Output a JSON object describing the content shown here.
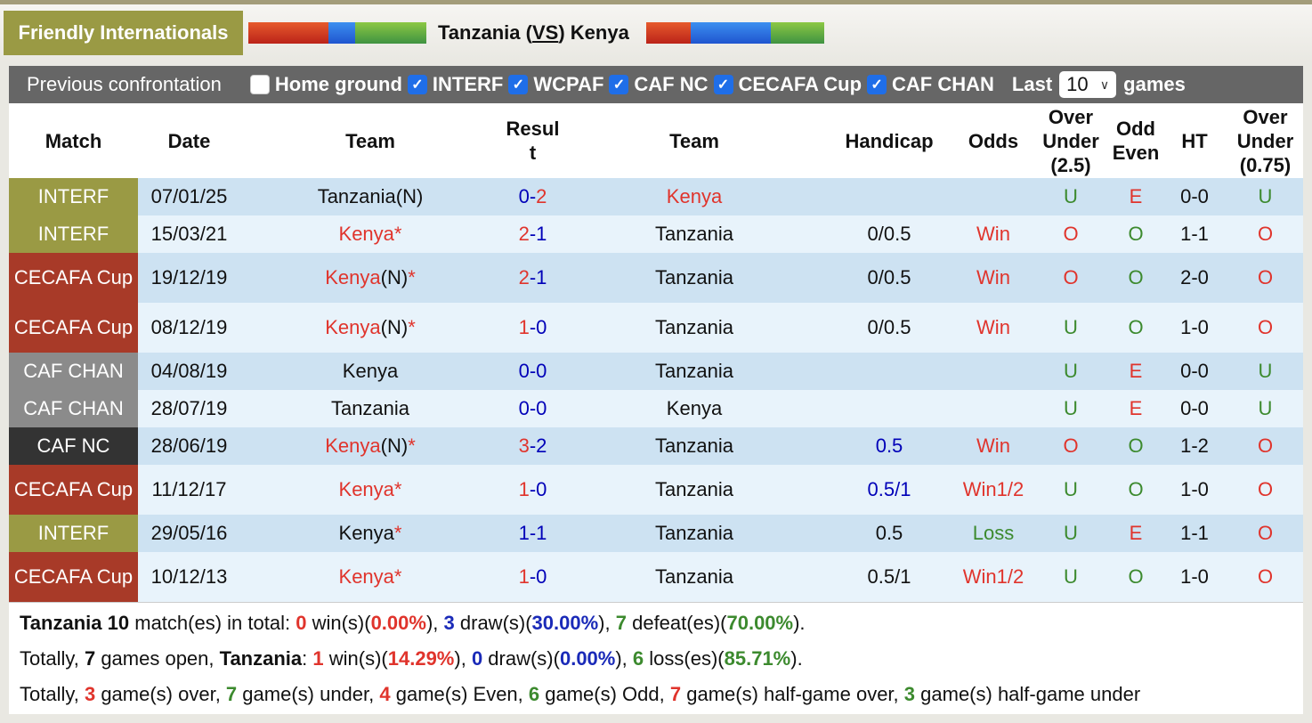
{
  "header": {
    "league": "Friendly Internationals",
    "home_team": "Tanzania",
    "vs_open": "(",
    "vs_label": "VS",
    "vs_close": ")",
    "away_team": "Kenya",
    "home_form_bar": [
      {
        "color": "red",
        "width": 90
      },
      {
        "color": "blue",
        "width": 30
      },
      {
        "color": "green",
        "width": 80
      }
    ],
    "away_form_bar": [
      {
        "color": "red",
        "width": 50
      },
      {
        "color": "blue",
        "width": 90
      },
      {
        "color": "green",
        "width": 60
      }
    ]
  },
  "filters": {
    "title": "Previous confrontation",
    "checkboxes": [
      {
        "label": "Home ground",
        "checked": false
      },
      {
        "label": "INTERF",
        "checked": true
      },
      {
        "label": "WCPAF",
        "checked": true
      },
      {
        "label": "CAF NC",
        "checked": true
      },
      {
        "label": "CECAFA Cup",
        "checked": true
      },
      {
        "label": "CAF CHAN",
        "checked": true
      }
    ],
    "check_glyph": "✓",
    "last_label": "Last",
    "last_value": "10",
    "games_label": "games"
  },
  "table": {
    "columns": [
      "Match",
      "Date",
      "Team",
      "Resul t",
      "Team",
      "Handicap",
      "Odds",
      "Over Under (2.5)",
      "Odd Even",
      "HT",
      "Over Under (0.75)"
    ],
    "rows": [
      {
        "match": "INTERF",
        "match_type": "interf",
        "date": "07/01/25",
        "home": "Tanzania",
        "home_suffix": "(N)",
        "home_star": "",
        "home_color": "black",
        "score_home": "0",
        "score_away": "2",
        "score_home_color": "blue",
        "score_away_color": "red",
        "away": "Kenya",
        "away_color": "red",
        "handicap": "",
        "handicap_color": "black",
        "odds": "",
        "odds_color": "red",
        "ou25": "U",
        "oe": "E",
        "ht": "0-0",
        "ou075": "U"
      },
      {
        "match": "INTERF",
        "match_type": "interf",
        "date": "15/03/21",
        "home": "Kenya",
        "home_suffix": "",
        "home_star": "*",
        "home_color": "red",
        "score_home": "2",
        "score_away": "1",
        "score_home_color": "red",
        "score_away_color": "blue",
        "away": "Tanzania",
        "away_color": "black",
        "handicap": "0/0.5",
        "handicap_color": "black",
        "odds": "Win",
        "odds_color": "red",
        "ou25": "O",
        "oe": "O",
        "ht": "1-1",
        "ou075": "O"
      },
      {
        "match": "CECAFA Cup",
        "match_type": "cecafa",
        "date": "19/12/19",
        "home": "Kenya",
        "home_suffix": "(N)",
        "home_star": "*",
        "home_color": "red",
        "score_home": "2",
        "score_away": "1",
        "score_home_color": "red",
        "score_away_color": "blue",
        "away": "Tanzania",
        "away_color": "black",
        "handicap": "0/0.5",
        "handicap_color": "black",
        "odds": "Win",
        "odds_color": "red",
        "ou25": "O",
        "oe": "O",
        "ht": "2-0",
        "ou075": "O"
      },
      {
        "match": "CECAFA Cup",
        "match_type": "cecafa",
        "date": "08/12/19",
        "home": "Kenya",
        "home_suffix": "(N)",
        "home_star": "*",
        "home_color": "red",
        "score_home": "1",
        "score_away": "0",
        "score_home_color": "red",
        "score_away_color": "blue",
        "away": "Tanzania",
        "away_color": "black",
        "handicap": "0/0.5",
        "handicap_color": "black",
        "odds": "Win",
        "odds_color": "red",
        "ou25": "U",
        "oe": "O",
        "ht": "1-0",
        "ou075": "O"
      },
      {
        "match": "CAF CHAN",
        "match_type": "chan",
        "date": "04/08/19",
        "home": "Kenya",
        "home_suffix": "",
        "home_star": "",
        "home_color": "black",
        "score_home": "0",
        "score_away": "0",
        "score_home_color": "blue",
        "score_away_color": "blue",
        "away": "Tanzania",
        "away_color": "black",
        "handicap": "",
        "handicap_color": "black",
        "odds": "",
        "odds_color": "red",
        "ou25": "U",
        "oe": "E",
        "ht": "0-0",
        "ou075": "U"
      },
      {
        "match": "CAF CHAN",
        "match_type": "chan",
        "date": "28/07/19",
        "home": "Tanzania",
        "home_suffix": "",
        "home_star": "",
        "home_color": "black",
        "score_home": "0",
        "score_away": "0",
        "score_home_color": "blue",
        "score_away_color": "blue",
        "away": "Kenya",
        "away_color": "black",
        "handicap": "",
        "handicap_color": "black",
        "odds": "",
        "odds_color": "red",
        "ou25": "U",
        "oe": "E",
        "ht": "0-0",
        "ou075": "U"
      },
      {
        "match": "CAF NC",
        "match_type": "cafnc",
        "date": "28/06/19",
        "home": "Kenya",
        "home_suffix": "(N)",
        "home_star": "*",
        "home_color": "red",
        "score_home": "3",
        "score_away": "2",
        "score_home_color": "red",
        "score_away_color": "blue",
        "away": "Tanzania",
        "away_color": "black",
        "handicap": "0.5",
        "handicap_color": "dblue",
        "odds": "Win",
        "odds_color": "red",
        "ou25": "O",
        "oe": "O",
        "ht": "1-2",
        "ou075": "O"
      },
      {
        "match": "CECAFA Cup",
        "match_type": "cecafa",
        "date": "11/12/17",
        "home": "Kenya",
        "home_suffix": "",
        "home_star": "*",
        "home_color": "red",
        "score_home": "1",
        "score_away": "0",
        "score_home_color": "red",
        "score_away_color": "blue",
        "away": "Tanzania",
        "away_color": "black",
        "handicap": "0.5/1",
        "handicap_color": "dblue",
        "odds": "Win1/2",
        "odds_color": "red",
        "ou25": "U",
        "oe": "O",
        "ht": "1-0",
        "ou075": "O"
      },
      {
        "match": "INTERF",
        "match_type": "interf",
        "date": "29/05/16",
        "home": "Kenya",
        "home_suffix": "",
        "home_star": "*",
        "home_color": "black",
        "score_home": "1",
        "score_away": "1",
        "score_home_color": "blue",
        "score_away_color": "blue",
        "away": "Tanzania",
        "away_color": "black",
        "handicap": "0.5",
        "handicap_color": "black",
        "odds": "Loss",
        "odds_color": "green",
        "ou25": "U",
        "oe": "E",
        "ht": "1-1",
        "ou075": "O"
      },
      {
        "match": "CECAFA Cup",
        "match_type": "cecafa",
        "date": "10/12/13",
        "home": "Kenya",
        "home_suffix": "",
        "home_star": "*",
        "home_color": "red",
        "score_home": "1",
        "score_away": "0",
        "score_home_color": "red",
        "score_away_color": "blue",
        "away": "Tanzania",
        "away_color": "black",
        "handicap": "0.5/1",
        "handicap_color": "black",
        "odds": "Win1/2",
        "odds_color": "red",
        "ou25": "U",
        "oe": "O",
        "ht": "1-0",
        "ou075": "O"
      }
    ]
  },
  "summary": {
    "line1": {
      "team": "Tanzania",
      "total": "10",
      "t1": " match(es) in total: ",
      "wins": "0",
      "t2": " win(s)(",
      "win_pct": "0.00%",
      "t3": "), ",
      "draws": "3",
      "t4": " draw(s)(",
      "draw_pct": "30.00%",
      "t5": "), ",
      "defeats": "7",
      "t6": " defeat(es)(",
      "defeat_pct": "70.00%",
      "t7": ")."
    },
    "line2": {
      "t0": "Totally, ",
      "open": "7",
      "t1": " games open, ",
      "team": "Tanzania",
      "t2": ": ",
      "wins": "1",
      "t3": " win(s)(",
      "win_pct": "14.29%",
      "t4": "), ",
      "draws": "0",
      "t5": " draw(s)(",
      "draw_pct": "0.00%",
      "t6": "), ",
      "losses": "6",
      "t7": " loss(es)(",
      "loss_pct": "85.71%",
      "t8": ")."
    },
    "line3": {
      "t0": "Totally, ",
      "over": "3",
      "t1": " game(s) over, ",
      "under": "7",
      "t2": " game(s) under, ",
      "even": "4",
      "t3": " game(s) Even, ",
      "odd": "6",
      "t4": " game(s) Odd, ",
      "hg_over": "7",
      "t5": " game(s) half-game over, ",
      "hg_under": "3",
      "t6": " game(s) half-game under"
    }
  }
}
